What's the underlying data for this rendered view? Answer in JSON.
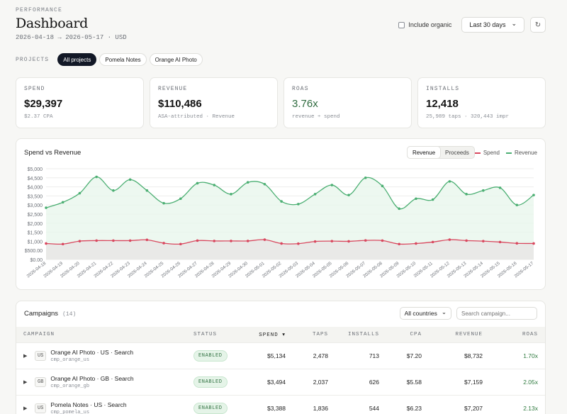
{
  "header": {
    "eyebrow": "PERFORMANCE",
    "title": "Dashboard",
    "subtitle": "2026-04-18 → 2026-05-17 · USD",
    "include_organic_label": "Include organic",
    "include_organic_checked": false,
    "range_label": "Last 30 days",
    "chevron_icon": "chevron-down-icon",
    "refresh_icon": "refresh-icon",
    "refresh_glyph": "↻",
    "chevron_glyph": "⌄"
  },
  "projects": {
    "label": "PROJECTS",
    "items": [
      "All projects",
      "Pomela Notes",
      "Orange AI Photo"
    ],
    "active_index": 0
  },
  "kpis": [
    {
      "label": "SPEND",
      "value": "$29,397",
      "sub": "$2.37 CPA"
    },
    {
      "label": "REVENUE",
      "value": "$110,486",
      "sub": "ASA-attributed · Revenue"
    },
    {
      "label": "ROAS",
      "value": "3.76x",
      "sub": "revenue ÷ spend"
    },
    {
      "label": "INSTALLS",
      "value": "12,418",
      "sub": "25,989 taps · 320,443 impr"
    }
  ],
  "chart": {
    "title": "Spend vs Revenue",
    "toggle": [
      "Revenue",
      "Proceeds"
    ],
    "toggle_active": 0,
    "legend": [
      {
        "name": "Spend",
        "color": "#d9485f"
      },
      {
        "name": "Revenue",
        "color": "#4caf73"
      }
    ]
  },
  "chart_data": {
    "type": "line",
    "title": "Spend vs Revenue",
    "xlabel": "",
    "ylabel": "",
    "ylim": [
      0,
      5000
    ],
    "y_ticks": [
      "$0.00",
      "$500.00",
      "$1,000",
      "$1,500",
      "$2,000",
      "$2,500",
      "$3,000",
      "$3,500",
      "$4,000",
      "$4,500",
      "$5,000"
    ],
    "x": [
      "2026-04-18",
      "2026-04-19",
      "2026-04-20",
      "2026-04-21",
      "2026-04-22",
      "2026-04-23",
      "2026-04-24",
      "2026-04-25",
      "2026-04-26",
      "2026-04-27",
      "2026-04-28",
      "2026-04-29",
      "2026-04-30",
      "2026-05-01",
      "2026-05-02",
      "2026-05-03",
      "2026-05-04",
      "2026-05-05",
      "2026-05-06",
      "2026-05-07",
      "2026-05-08",
      "2026-05-09",
      "2026-05-10",
      "2026-05-11",
      "2026-05-12",
      "2026-05-13",
      "2026-05-14",
      "2026-05-15",
      "2026-05-16",
      "2026-05-17"
    ],
    "series": [
      {
        "name": "Revenue",
        "color": "#4caf73",
        "values": [
          2850,
          3150,
          3650,
          4550,
          3800,
          4400,
          3800,
          3100,
          3350,
          4200,
          4100,
          3600,
          4250,
          4150,
          3200,
          3050,
          3600,
          4100,
          3550,
          4500,
          4050,
          2800,
          3350,
          3300,
          4300,
          3600,
          3800,
          3950,
          3000,
          3550
        ]
      },
      {
        "name": "Spend",
        "color": "#d9485f",
        "values": [
          880,
          850,
          1010,
          1040,
          1040,
          1040,
          1080,
          900,
          850,
          1040,
          1020,
          1020,
          1020,
          1090,
          880,
          870,
          990,
          1010,
          1000,
          1050,
          1040,
          850,
          880,
          960,
          1090,
          1040,
          1010,
          960,
          890,
          880
        ]
      }
    ],
    "grid": true,
    "legend_position": "top-right"
  },
  "campaigns": {
    "title": "Campaigns",
    "count": "(14)",
    "country_filter": "All countries",
    "search_placeholder": "Search campaign...",
    "columns": [
      "CAMPAIGN",
      "STATUS",
      "SPEND ▾",
      "TAPS",
      "INSTALLS",
      "CPA",
      "REVENUE",
      "ROAS"
    ],
    "rows": [
      {
        "expand": "▶",
        "country": "US",
        "name": "Orange AI Photo · US · Search",
        "id": "cmp_orange_us",
        "status": "ENABLED",
        "spend": "$5,134",
        "taps": "2,478",
        "installs": "713",
        "cpa": "$7.20",
        "revenue": "$8,732",
        "roas": "1.70x"
      },
      {
        "expand": "▶",
        "country": "GB",
        "name": "Orange AI Photo · GB · Search",
        "id": "cmp_orange_gb",
        "status": "ENABLED",
        "spend": "$3,494",
        "taps": "2,037",
        "installs": "626",
        "cpa": "$5.58",
        "revenue": "$7,159",
        "roas": "2.05x"
      },
      {
        "expand": "▶",
        "country": "US",
        "name": "Pomela Notes · US · Search",
        "id": "cmp_pomela_us",
        "status": "ENABLED",
        "spend": "$3,388",
        "taps": "1,836",
        "installs": "544",
        "cpa": "$6.23",
        "revenue": "$7,207",
        "roas": "2.13x"
      }
    ]
  }
}
